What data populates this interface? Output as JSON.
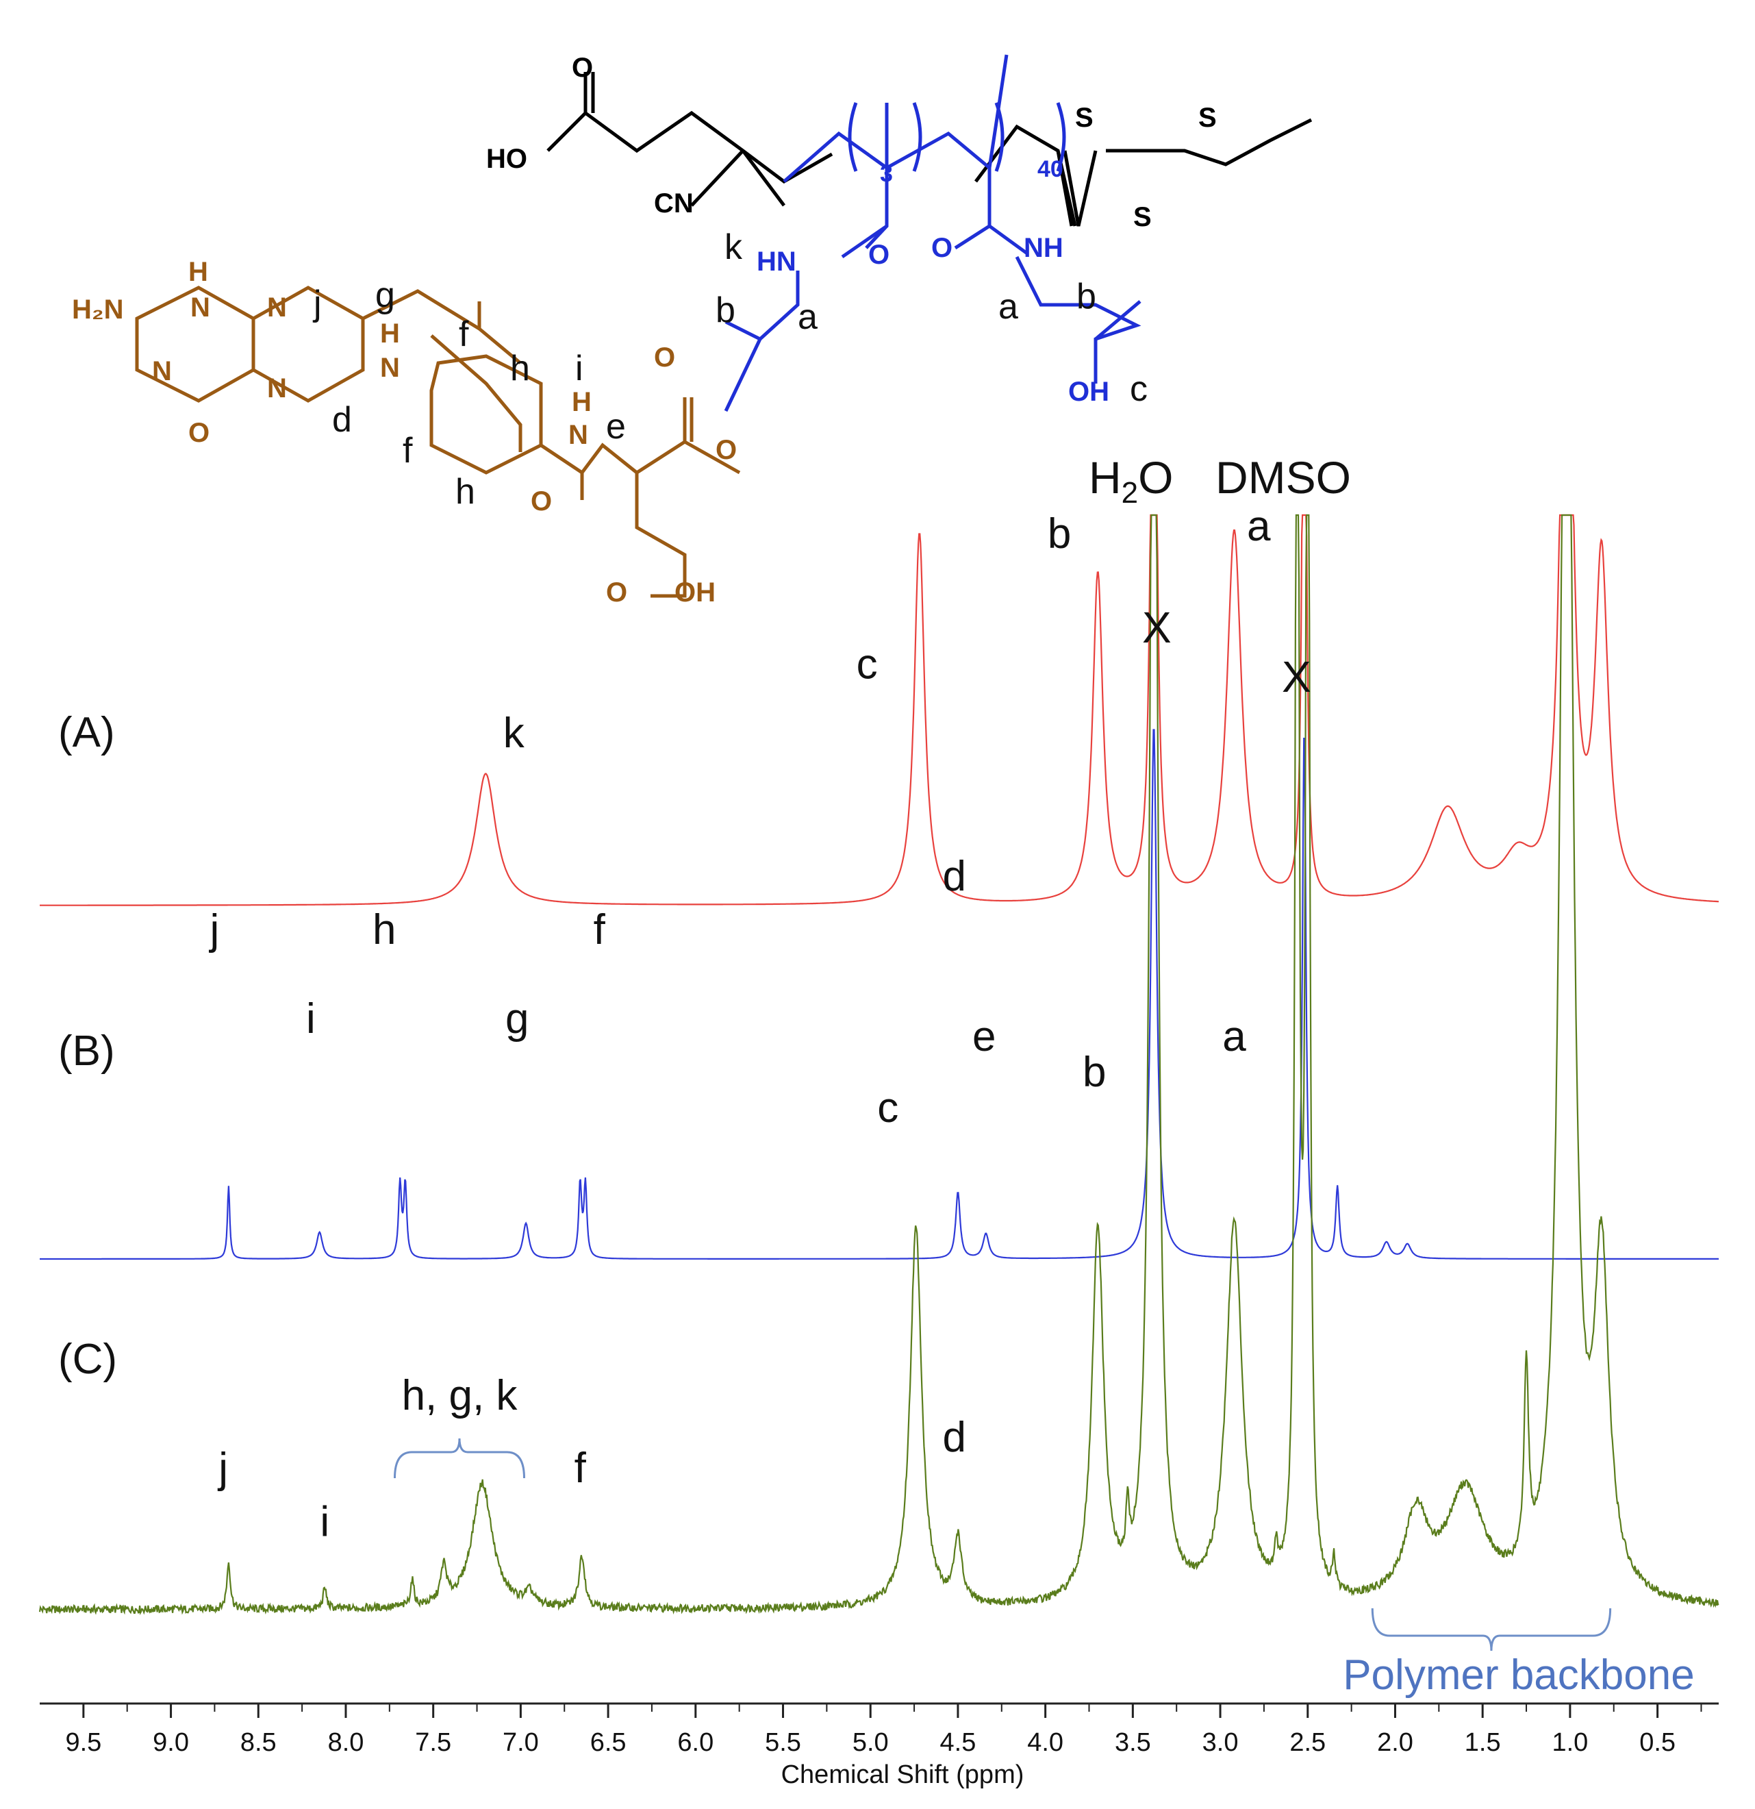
{
  "chart_data": {
    "type": "line",
    "xlabel": "Chemical Shift (ppm)",
    "x_reversed": true,
    "xlim": [
      9.75,
      0.15
    ],
    "xticks": [
      9.5,
      9.0,
      8.5,
      8.0,
      7.5,
      7.0,
      6.5,
      6.0,
      5.5,
      5.0,
      4.5,
      4.0,
      3.5,
      3.0,
      2.5,
      2.0,
      1.5,
      1.0,
      0.5
    ],
    "xtick_labels": [
      "9.5",
      "9.0",
      "8.5",
      "8.0",
      "7.5",
      "7.0",
      "6.5",
      "6.0",
      "5.5",
      "5.0",
      "4.5",
      "4.0",
      "3.5",
      "3.0",
      "2.5",
      "2.0",
      "1.5",
      "1.0",
      "0.5"
    ],
    "solvent_labels": {
      "water_main": "H",
      "water_sub": "2",
      "water_tail": "O",
      "dmso": "DMSO",
      "mark": "X"
    },
    "series": [
      {
        "name": "(A)",
        "color": "#e8413d",
        "peaks": [
          {
            "ppm": 7.2,
            "height": 0.34,
            "width": 0.07
          },
          {
            "ppm": 4.72,
            "height": 0.96,
            "width": 0.035
          },
          {
            "ppm": 3.7,
            "height": 0.85,
            "width": 0.035
          },
          {
            "ppm": 3.38,
            "height": 2.2,
            "width": 0.018
          },
          {
            "ppm": 2.92,
            "height": 0.96,
            "width": 0.05
          },
          {
            "ppm": 2.52,
            "height": 2.2,
            "width": 0.012
          },
          {
            "ppm": 1.7,
            "height": 0.24,
            "width": 0.12
          },
          {
            "ppm": 1.3,
            "height": 0.1,
            "width": 0.1
          },
          {
            "ppm": 1.02,
            "height": 2.2,
            "width": 0.035
          },
          {
            "ppm": 0.82,
            "height": 0.87,
            "width": 0.045
          }
        ],
        "labels": [
          {
            "text": "k",
            "ppm": 7.04,
            "level": 0.38
          },
          {
            "text": "c",
            "ppm": 5.02,
            "level": 0.56
          },
          {
            "text": "b",
            "ppm": 3.92,
            "level": 0.9
          },
          {
            "text": "a",
            "ppm": 2.78,
            "level": 0.92
          }
        ]
      },
      {
        "name": "(B)",
        "color": "#2e3ad8",
        "peaks": [
          {
            "ppm": 8.67,
            "height": 0.82,
            "width": 0.008
          },
          {
            "ppm": 8.15,
            "height": 0.3,
            "width": 0.02
          },
          {
            "ppm": 7.69,
            "height": 0.83,
            "width": 0.01
          },
          {
            "ppm": 7.66,
            "height": 0.83,
            "width": 0.01
          },
          {
            "ppm": 6.97,
            "height": 0.4,
            "width": 0.02
          },
          {
            "ppm": 6.66,
            "height": 0.83,
            "width": 0.01
          },
          {
            "ppm": 6.63,
            "height": 0.83,
            "width": 0.01
          },
          {
            "ppm": 4.5,
            "height": 0.75,
            "width": 0.015
          },
          {
            "ppm": 4.34,
            "height": 0.28,
            "width": 0.02
          },
          {
            "ppm": 3.38,
            "height": 6.0,
            "width": 0.02
          },
          {
            "ppm": 2.52,
            "height": 6.0,
            "width": 0.012
          },
          {
            "ppm": 2.33,
            "height": 0.8,
            "width": 0.012
          },
          {
            "ppm": 2.05,
            "height": 0.18,
            "width": 0.025
          },
          {
            "ppm": 1.93,
            "height": 0.16,
            "width": 0.025
          }
        ],
        "labels": [
          {
            "text": "j",
            "ppm": 8.75,
            "level": 0.85
          },
          {
            "text": "i",
            "ppm": 8.2,
            "level": 0.6
          },
          {
            "text": "h",
            "ppm": 7.78,
            "level": 0.85
          },
          {
            "text": "g",
            "ppm": 7.02,
            "level": 0.6
          },
          {
            "text": "f",
            "ppm": 6.55,
            "level": 0.85
          },
          {
            "text": "d",
            "ppm": 4.52,
            "level": 1.0
          },
          {
            "text": "e",
            "ppm": 4.35,
            "level": 0.55
          },
          {
            "text": "c",
            "ppm": 4.9,
            "level": 0.35
          },
          {
            "text": "b",
            "ppm": 3.72,
            "level": 0.45
          },
          {
            "text": "a",
            "ppm": 2.92,
            "level": 0.55
          }
        ]
      },
      {
        "name": "(C)",
        "color": "#5a7d1c",
        "peaks": [
          {
            "ppm": 8.67,
            "height": 0.18,
            "width": 0.012
          },
          {
            "ppm": 8.12,
            "height": 0.08,
            "width": 0.012
          },
          {
            "ppm": 7.62,
            "height": 0.1,
            "width": 0.012
          },
          {
            "ppm": 7.44,
            "height": 0.14,
            "width": 0.02
          },
          {
            "ppm": 7.22,
            "height": 0.48,
            "width": 0.07
          },
          {
            "ppm": 6.95,
            "height": 0.05,
            "width": 0.03
          },
          {
            "ppm": 6.65,
            "height": 0.2,
            "width": 0.02
          },
          {
            "ppm": 4.74,
            "height": 1.45,
            "width": 0.04
          },
          {
            "ppm": 4.5,
            "height": 0.25,
            "width": 0.025
          },
          {
            "ppm": 3.7,
            "height": 1.42,
            "width": 0.04
          },
          {
            "ppm": 3.53,
            "height": 0.22,
            "width": 0.01
          },
          {
            "ppm": 3.38,
            "height": 6.0,
            "width": 0.025
          },
          {
            "ppm": 2.92,
            "height": 1.45,
            "width": 0.055
          },
          {
            "ppm": 2.68,
            "height": 0.12,
            "width": 0.01
          },
          {
            "ppm": 2.56,
            "height": 6.0,
            "width": 0.012
          },
          {
            "ppm": 2.5,
            "height": 6.0,
            "width": 0.012
          },
          {
            "ppm": 2.35,
            "height": 0.12,
            "width": 0.01
          },
          {
            "ppm": 1.88,
            "height": 0.32,
            "width": 0.08
          },
          {
            "ppm": 1.6,
            "height": 0.42,
            "width": 0.13
          },
          {
            "ppm": 1.25,
            "height": 0.75,
            "width": 0.015
          },
          {
            "ppm": 1.02,
            "height": 6.0,
            "width": 0.04
          },
          {
            "ppm": 0.82,
            "height": 1.25,
            "width": 0.05
          }
        ],
        "labels": [
          {
            "text": "j",
            "ppm": 8.7,
            "level": 0.3
          },
          {
            "text": "i",
            "ppm": 8.12,
            "level": 0.16
          },
          {
            "text": "f",
            "ppm": 6.66,
            "level": 0.3
          },
          {
            "text": "d",
            "ppm": 4.52,
            "level": 0.38
          }
        ],
        "group_label": "h, g, k",
        "group_range": [
          7.72,
          6.98
        ],
        "backbone_label": "Polymer backbone",
        "backbone_range": [
          2.13,
          0.77
        ]
      }
    ]
  },
  "structure": {
    "ho": "HO",
    "o": "O",
    "cn": "CN",
    "oh": "OH",
    "n_3": "3",
    "n_40": "40",
    "s": "S",
    "hn": "HN",
    "nh": "NH",
    "h2n": "H₂N",
    "h": "H",
    "n": "N",
    "label_a": "a",
    "label_b": "b",
    "label_c": "c",
    "label_d": "d",
    "label_e": "e",
    "label_f": "f",
    "label_g": "g",
    "label_h": "h",
    "label_i": "i",
    "label_j": "j",
    "label_k": "k",
    "colors": {
      "black": "#000000",
      "blue": "#1f2fd6",
      "brown": "#9a5a14"
    }
  }
}
